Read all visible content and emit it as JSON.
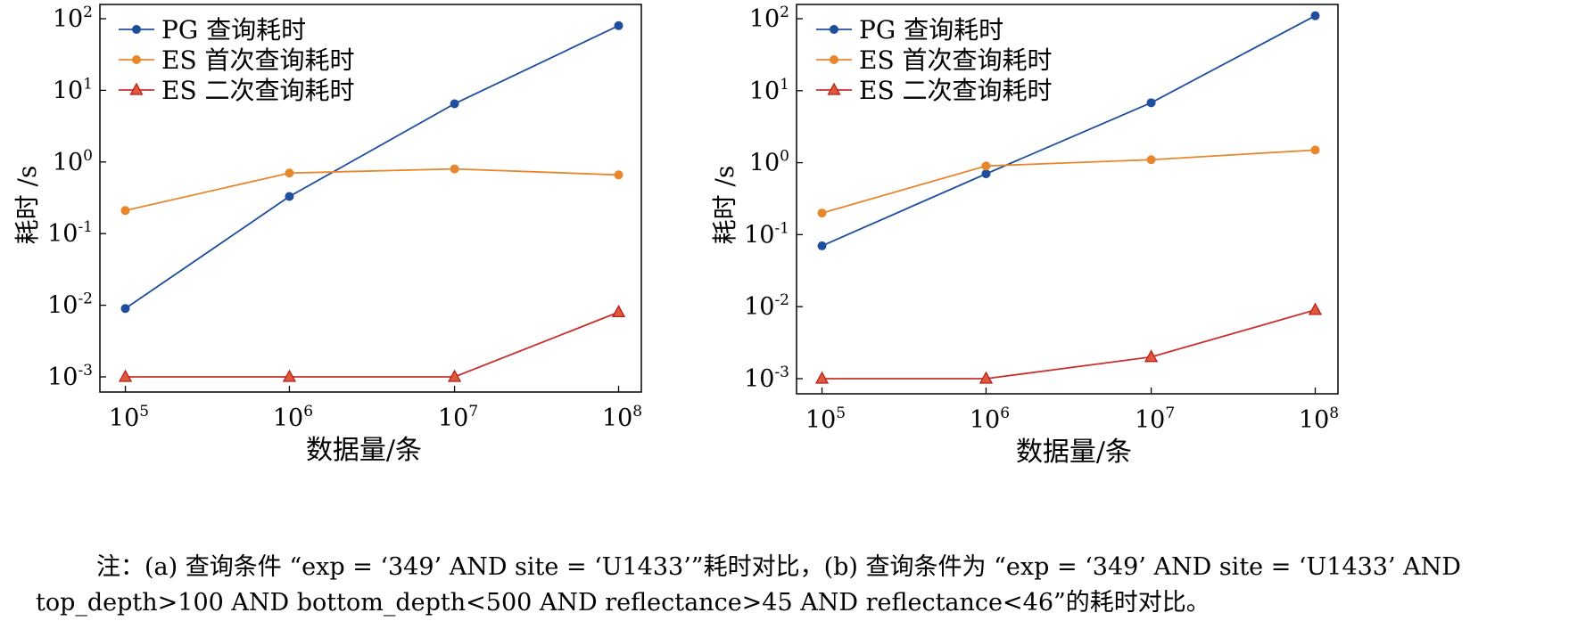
{
  "chart_data": [
    {
      "id": "a",
      "type": "line",
      "xscale": "log",
      "yscale": "log",
      "x": [
        100000,
        1000000,
        10000000,
        100000000
      ],
      "xticks": [
        "10^5",
        "10^6",
        "10^7",
        "10^8"
      ],
      "yticks": [
        "10^-3",
        "10^-2",
        "10^-1",
        "10^0",
        "10^1",
        "10^2"
      ],
      "ylim": [
        0.001,
        100
      ],
      "xlabel": "数据量/条",
      "ylabel": "耗时 /s",
      "grid": false,
      "legend_position": "top-left",
      "series": [
        {
          "name": "PG 查询耗时",
          "color": "#1f4e9f",
          "marker": "circle",
          "values": [
            0.009,
            0.33,
            6.5,
            80
          ]
        },
        {
          "name": "ES 首次查询耗时",
          "color": "#e8862b",
          "marker": "circle",
          "values": [
            0.21,
            0.7,
            0.8,
            0.66
          ]
        },
        {
          "name": "ES 二次查询耗时",
          "color": "#c8312b",
          "marker": "triangle",
          "values": [
            0.001,
            0.001,
            0.001,
            0.008
          ]
        }
      ]
    },
    {
      "id": "b",
      "type": "line",
      "xscale": "log",
      "yscale": "log",
      "x": [
        100000,
        1000000,
        10000000,
        100000000
      ],
      "xticks": [
        "10^5",
        "10^6",
        "10^7",
        "10^8"
      ],
      "yticks": [
        "10^-3",
        "10^-2",
        "10^-1",
        "10^0",
        "10^1",
        "10^2"
      ],
      "ylim": [
        0.001,
        100
      ],
      "xlabel": "数据量/条",
      "ylabel": "耗时 /s",
      "grid": false,
      "legend_position": "top-left",
      "series": [
        {
          "name": "PG 查询耗时",
          "color": "#1f4e9f",
          "marker": "circle",
          "values": [
            0.07,
            0.7,
            6.8,
            110
          ]
        },
        {
          "name": "ES 首次查询耗时",
          "color": "#e8862b",
          "marker": "circle",
          "values": [
            0.2,
            0.9,
            1.1,
            1.5
          ]
        },
        {
          "name": "ES 二次查询耗时",
          "color": "#c8312b",
          "marker": "triangle",
          "values": [
            0.001,
            0.001,
            0.002,
            0.009
          ]
        }
      ]
    }
  ],
  "caption": {
    "line1": "注：(a) 查询条件 “exp = ‘349’ AND site = ‘U1433’”耗时对比，(b) 查询条件为 “exp = ‘349’ AND site = ‘U1433’ AND",
    "line2": "top_depth>100 AND bottom_depth<500 AND reflectance>45 AND reflectance<46”的耗时对比。"
  }
}
